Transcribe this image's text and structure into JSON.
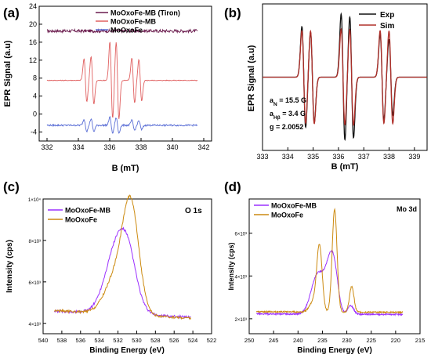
{
  "chart_data": [
    {
      "panel": "(a)",
      "type": "line",
      "xlabel": "B (mT)",
      "ylabel": "EPR Signal (a.u)",
      "xlim": [
        331.5,
        342.5
      ],
      "ylim": [
        -6,
        24
      ],
      "xticks": [
        332,
        334,
        336,
        338,
        340,
        342
      ],
      "xtick_labels": [
        "332",
        "334",
        "336",
        "338",
        "340",
        "342"
      ],
      "yticks": [
        -4,
        0,
        4,
        8,
        12,
        16,
        20,
        24
      ],
      "ytick_labels": [
        "-4",
        "0",
        "4",
        "8",
        "12",
        "16",
        "20",
        "24"
      ],
      "legend_position": "top-right",
      "series": [
        {
          "name": "MoOxoFe-MB (Tiron)",
          "color": "#6a1b4d",
          "baseline": 18.5,
          "noise": 0.35,
          "peaks": []
        },
        {
          "name": "MoOxoFe-MB",
          "color": "#e06060",
          "baseline": 7.5,
          "noise": 0.08,
          "peaks": [
            [
              334.45,
              4.8
            ],
            [
              334.9,
              5.3
            ],
            [
              336.1,
              8.6
            ],
            [
              336.5,
              8.6
            ],
            [
              337.5,
              5.0
            ],
            [
              337.95,
              4.6
            ]
          ]
        },
        {
          "name": "MoOxoFe",
          "color": "#5b6fd6",
          "baseline": -2.5,
          "noise": 0.18,
          "peaks": [
            [
              334.45,
              1.3
            ],
            [
              334.9,
              1.4
            ],
            [
              336.1,
              1.8
            ],
            [
              336.5,
              1.7
            ],
            [
              337.5,
              1.1
            ],
            [
              337.95,
              1.0
            ]
          ]
        }
      ]
    },
    {
      "panel": "(b)",
      "type": "line",
      "xlabel": "B (mT)",
      "ylabel": "EPR Signal (a.u)",
      "xlim": [
        333,
        339.5
      ],
      "xticks": [
        333,
        334,
        335,
        336,
        337,
        338,
        339
      ],
      "xtick_labels": [
        "333",
        "334",
        "335",
        "336",
        "337",
        "338",
        "339"
      ],
      "legend_position": "top-right",
      "series": [
        {
          "name": "Exp",
          "color": "#111111",
          "peaks": [
            [
              334.63,
              1.0
            ],
            [
              334.97,
              0.9
            ],
            [
              336.18,
              1.25
            ],
            [
              336.52,
              1.2
            ],
            [
              337.72,
              0.85
            ],
            [
              338.07,
              0.75
            ]
          ]
        },
        {
          "name": "Sim",
          "color": "#b0302a",
          "peaks": [
            [
              334.63,
              0.92
            ],
            [
              334.97,
              0.92
            ],
            [
              336.18,
              0.95
            ],
            [
              336.52,
              0.95
            ],
            [
              337.72,
              0.92
            ],
            [
              338.07,
              0.92
            ]
          ]
        }
      ],
      "annotations": {
        "aN_prefix": "a",
        "aN_sub": "N",
        "aN_value": " = 15.5 G",
        "aH_prefix": "a",
        "aH_sub": "Hβ",
        "aH_value": " = 3.4 G",
        "g": "g = 2.0052"
      }
    },
    {
      "panel": "(c)",
      "type": "line",
      "xlabel": "Binding Energy (eV)",
      "ylabel": "Intensity (cps)",
      "annotation": "O 1s",
      "xlim": [
        540,
        522
      ],
      "ylim": [
        3500,
        10000
      ],
      "xticks": [
        540,
        538,
        536,
        534,
        532,
        530,
        528,
        526,
        524,
        522
      ],
      "xtick_labels": [
        "540",
        "538",
        "536",
        "534",
        "532",
        "530",
        "528",
        "526",
        "524",
        "522"
      ],
      "yticks": [
        4000,
        6000,
        8000,
        10000
      ],
      "ytick_labels": [
        "4×10³",
        "6×10³",
        "8×10³",
        "1×10⁴"
      ],
      "legend_position": "top-left",
      "x_range": [
        538.8,
        524.2
      ],
      "series": [
        {
          "name": "MoOxoFe-MB",
          "color": "#9b30ff",
          "base": 4300,
          "slope": 20,
          "noise": 60,
          "peaks": [
            [
              531.9,
              3600,
              1.3
            ],
            [
              530.8,
              1000,
              0.8
            ]
          ]
        },
        {
          "name": "MoOxoFe",
          "color": "#cc8a10",
          "base": 4250,
          "slope": 25,
          "noise": 60,
          "peaks": [
            [
              530.6,
              4800,
              0.85
            ],
            [
              532.1,
              1900,
              1.2
            ]
          ]
        }
      ]
    },
    {
      "panel": "(d)",
      "type": "line",
      "xlabel": "Binding Energy (eV)",
      "ylabel": "Intensity (cps)",
      "annotation": "Mo 3d",
      "xlim": [
        250,
        215
      ],
      "ylim": [
        1300,
        7600
      ],
      "xticks": [
        250,
        245,
        240,
        235,
        230,
        225,
        220,
        215
      ],
      "xtick_labels": [
        "250",
        "245",
        "240",
        "235",
        "230",
        "225",
        "220",
        "215"
      ],
      "yticks": [
        2000,
        4000,
        6000
      ],
      "ytick_labels": [
        "2×10³",
        "4×10³",
        "6×10³"
      ],
      "legend_position": "top-left",
      "x_range": [
        248.5,
        218.5
      ],
      "series": [
        {
          "name": "MoOxoFe-MB",
          "color": "#9b30ff",
          "base": 2200,
          "slope": 0.9,
          "noise": 30,
          "peaks": [
            [
              236.3,
              1500,
              1.2
            ],
            [
              235.0,
              700,
              1.0
            ],
            [
              233.2,
              2500,
              1.0
            ],
            [
              232.3,
              600,
              0.7
            ],
            [
              229.2,
              400,
              0.6
            ]
          ]
        },
        {
          "name": "MoOxoFe",
          "color": "#cc8a10",
          "base": 2300,
          "slope": 1.0,
          "noise": 30,
          "peaks": [
            [
              235.6,
              3000,
              0.55
            ],
            [
              232.5,
              4800,
              0.5
            ],
            [
              229.0,
              1200,
              0.45
            ],
            [
              236.8,
              500,
              0.8
            ]
          ]
        }
      ]
    }
  ]
}
